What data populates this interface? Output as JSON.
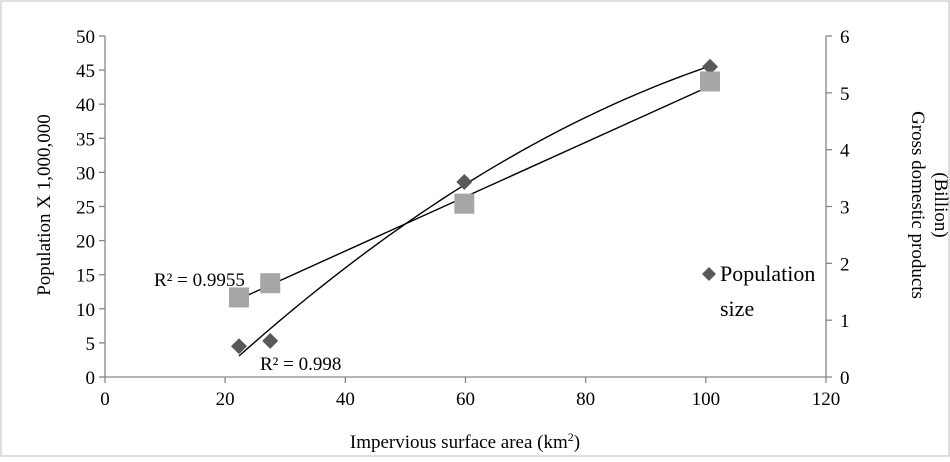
{
  "chart_data": {
    "type": "scatter",
    "xlabel": "Impervious surface area (km",
    "xlabel_sup": "2",
    "xlabel_end": ")",
    "ylabel_left": "Population X 1,000,000",
    "ylabel_right_line1": "Gross domestic products",
    "ylabel_right_line2": "(Billion)",
    "xlim": [
      0,
      120
    ],
    "ylim_left": [
      0,
      50
    ],
    "ylim_right": [
      0,
      6
    ],
    "x_ticks": [
      "0",
      "20",
      "40",
      "60",
      "80",
      "100",
      "120"
    ],
    "y_left_ticks": [
      "0",
      "5",
      "10",
      "15",
      "20",
      "25",
      "30",
      "35",
      "40",
      "45",
      "50"
    ],
    "y_right_ticks": [
      "0",
      "1",
      "2",
      "3",
      "4",
      "5",
      "6"
    ],
    "grid": false,
    "legend_position": "right",
    "series": [
      {
        "name": "Population size",
        "axis": "left",
        "marker": "diamond",
        "color": "#595959",
        "points": [
          [
            22.3,
            4.5
          ],
          [
            27.5,
            5.3
          ],
          [
            59.8,
            28.6
          ],
          [
            100.7,
            45.5
          ]
        ]
      },
      {
        "axis": "right",
        "marker": "square",
        "color": "#a6a6a6",
        "points": [
          [
            22.3,
            1.4
          ],
          [
            27.5,
            1.65
          ],
          [
            59.8,
            3.05
          ],
          [
            100.7,
            5.2
          ]
        ]
      }
    ],
    "trendlines": [
      {
        "series": 0,
        "type": "polynomial",
        "label": "R² = 0.998",
        "label_anchor": "bottom-left",
        "x": [
          22.3,
          100.7
        ],
        "y": [
          4.5,
          45.5
        ]
      },
      {
        "series": 1,
        "type": "linear",
        "label": "R² = 0.9955",
        "label_anchor": "top-left",
        "x": [
          22.3,
          100.7
        ],
        "y": [
          1.37,
          5.12
        ]
      }
    ],
    "legend": {
      "entries": [
        {
          "label_line1": "Population",
          "label_line2": "size",
          "marker": "diamond",
          "color": "#595959"
        }
      ]
    }
  }
}
